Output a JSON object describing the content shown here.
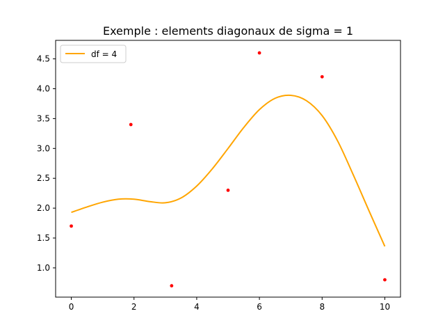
{
  "chart_data": {
    "type": "line",
    "title": "Exemple : elements diagonaux de sigma = 1",
    "xlabel": "",
    "ylabel": "",
    "xlim": [
      -0.5,
      10.5
    ],
    "ylim": [
      0.51,
      4.81
    ],
    "xticks": [
      0,
      2,
      4,
      6,
      8,
      10
    ],
    "xtick_labels": [
      "0",
      "2",
      "4",
      "6",
      "8",
      "10"
    ],
    "yticks": [
      1.0,
      1.5,
      2.0,
      2.5,
      3.0,
      3.5,
      4.0,
      4.5
    ],
    "ytick_labels": [
      "1.0",
      "1.5",
      "2.0",
      "2.5",
      "3.0",
      "3.5",
      "4.0",
      "4.5"
    ],
    "grid": false,
    "legend": {
      "position": "top-left",
      "entries": [
        "df = 4"
      ]
    },
    "series": [
      {
        "name": "df = 4",
        "kind": "line",
        "color": "#ffa500",
        "x": [
          0,
          0.5,
          1,
          1.5,
          2,
          2.5,
          3,
          3.5,
          4,
          4.5,
          5,
          5.5,
          6,
          6.5,
          7,
          7.5,
          8,
          8.5,
          9,
          9.5,
          10
        ],
        "y": [
          1.93,
          2.02,
          2.1,
          2.15,
          2.15,
          2.11,
          2.09,
          2.17,
          2.37,
          2.66,
          3.0,
          3.35,
          3.65,
          3.84,
          3.89,
          3.8,
          3.55,
          3.12,
          2.55,
          1.95,
          1.36
        ]
      },
      {
        "name": "",
        "kind": "scatter",
        "color": "#ff0000",
        "x": [
          0,
          1.9,
          3.2,
          5,
          6,
          8,
          10
        ],
        "y": [
          1.7,
          3.4,
          0.7,
          2.3,
          4.6,
          4.2,
          0.8
        ]
      }
    ]
  }
}
